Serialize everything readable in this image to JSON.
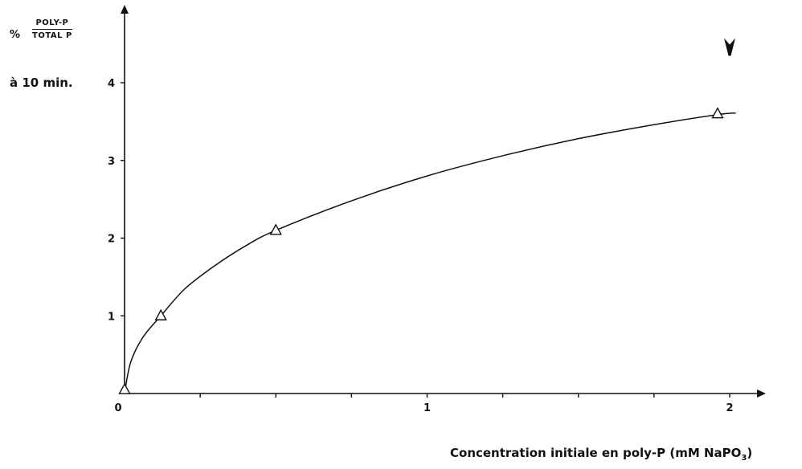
{
  "chart_data": {
    "type": "scatter",
    "y_label": {
      "prefix": "%",
      "numerator": "POLY-P",
      "denominator": "TOTAL P",
      "time": "à 10 min."
    },
    "x_label": {
      "text": "Concentration initiale en poly-P (mM NaPO",
      "subscript": "3",
      "suffix": ")"
    },
    "xlim": [
      0,
      2.2
    ],
    "ylim": [
      0,
      4.9
    ],
    "x_ticks": [
      0,
      0.25,
      0.5,
      0.75,
      1,
      1.25,
      1.5,
      1.75,
      2
    ],
    "x_tick_labels": [
      {
        "value": 0,
        "label": "0"
      },
      {
        "value": 1,
        "label": "1"
      },
      {
        "value": 2,
        "label": "2"
      }
    ],
    "y_ticks": [
      0,
      1,
      2,
      3,
      4
    ],
    "y_tick_labels": [
      {
        "value": 1,
        "label": "1"
      },
      {
        "value": 2,
        "label": "2"
      },
      {
        "value": 3,
        "label": "3"
      },
      {
        "value": 4,
        "label": "4"
      }
    ],
    "points": [
      {
        "x": 0.0,
        "y": 0.05
      },
      {
        "x": 0.12,
        "y": 1.0
      },
      {
        "x": 0.5,
        "y": 2.1
      },
      {
        "x": 1.96,
        "y": 3.6
      }
    ],
    "fit_curve": [
      {
        "x": 0.0,
        "y": 0.0
      },
      {
        "x": 0.02,
        "y": 0.4
      },
      {
        "x": 0.06,
        "y": 0.72
      },
      {
        "x": 0.12,
        "y": 1.0
      },
      {
        "x": 0.2,
        "y": 1.35
      },
      {
        "x": 0.3,
        "y": 1.65
      },
      {
        "x": 0.4,
        "y": 1.9
      },
      {
        "x": 0.5,
        "y": 2.1
      },
      {
        "x": 0.75,
        "y": 2.48
      },
      {
        "x": 1.0,
        "y": 2.8
      },
      {
        "x": 1.25,
        "y": 3.06
      },
      {
        "x": 1.5,
        "y": 3.28
      },
      {
        "x": 1.75,
        "y": 3.46
      },
      {
        "x": 1.96,
        "y": 3.59
      },
      {
        "x": 2.02,
        "y": 3.61
      }
    ],
    "arrow_marker": {
      "x": 2.0,
      "y": 4.45
    },
    "grid": false,
    "legend": "none"
  }
}
